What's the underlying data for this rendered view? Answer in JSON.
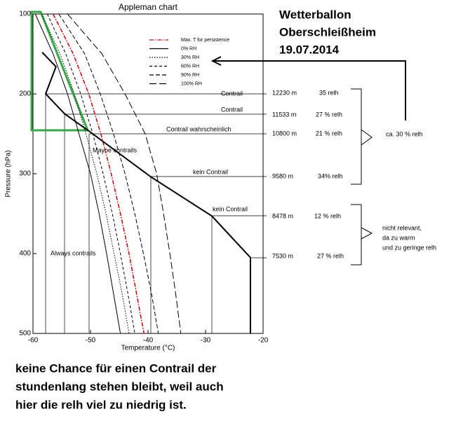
{
  "chart_data": {
    "type": "line",
    "title": "Appleman chart",
    "x_label": "Temperature (°C)",
    "y_label": "Pressure (hPa)",
    "xlim": [
      -60,
      -20
    ],
    "xticks": [
      -60,
      -50,
      -40,
      -30,
      -20
    ],
    "ylim": [
      100,
      500
    ],
    "yticks": [
      100,
      200,
      300,
      400,
      500
    ],
    "y_reversed": true,
    "series": [
      {
        "name": "Max. T for persistence",
        "color": "#cc0000",
        "dash": "dashdot",
        "pressure": [
          100,
          150,
          200,
          250,
          300,
          350,
          400,
          450,
          500
        ],
        "temperature": [
          -56.5,
          -53,
          -50.3,
          -48.2,
          -46.4,
          -44.8,
          -43.3,
          -42,
          -40.7
        ]
      },
      {
        "name": "0% RH",
        "color": "#000000",
        "dash": "solid",
        "pressure": [
          100,
          150,
          200,
          250,
          300,
          350,
          400,
          450,
          500
        ],
        "temperature": [
          -59.6,
          -56.5,
          -54,
          -52,
          -50,
          -48.5,
          -47.2,
          -46,
          -44.8
        ]
      },
      {
        "name": "30% RH",
        "color": "#000000",
        "dash": "dotted",
        "pressure": [
          100,
          150,
          200,
          250,
          300,
          350,
          400,
          450,
          500
        ],
        "temperature": [
          -58.5,
          -55.3,
          -52.8,
          -50.8,
          -48.9,
          -47.3,
          -45.9,
          -44.5,
          -43.3
        ]
      },
      {
        "name": "60% RH",
        "color": "#000000",
        "dash": "short",
        "pressure": [
          100,
          150,
          200,
          250,
          300,
          350,
          400,
          450,
          500
        ],
        "temperature": [
          -57.5,
          -54.3,
          -51.7,
          -49.6,
          -47.8,
          -46.2,
          -44.8,
          -43.5,
          -42.3
        ]
      },
      {
        "name": "90% RH",
        "color": "#000000",
        "dash": "medium",
        "pressure": [
          100,
          150,
          200,
          250,
          300,
          350,
          400,
          450,
          500
        ],
        "temperature": [
          -55.5,
          -51,
          -48.3,
          -46,
          -44,
          -42.3,
          -40.8,
          -39.4,
          -38.2
        ]
      },
      {
        "name": "100% RH",
        "color": "#000000",
        "dash": "long",
        "pressure": [
          100,
          150,
          200,
          250,
          300,
          350,
          400,
          450,
          500
        ],
        "temperature": [
          -54,
          -48,
          -44,
          -40.5,
          -38.5,
          -37.3,
          -36.2,
          -35.2,
          -34.3
        ]
      }
    ],
    "profile": {
      "color": "#000000",
      "pressure": [
        148,
        166,
        200,
        225,
        247,
        304,
        353,
        405,
        500
      ],
      "temperature": [
        -58.4,
        -56,
        -57.8,
        -54.5,
        -50.2,
        -39.5,
        -28.9,
        -22.2,
        -22.2
      ]
    },
    "region_labels": [
      "Always contrails",
      "Maybe contrails"
    ],
    "level_labels": [
      "Contrail",
      "Contrail",
      "Contrail wahrscheinlich",
      "kein Contrail",
      "kein Contrail"
    ],
    "heights": [
      "12230 m",
      "11533 m",
      "10800 m",
      "9580 m",
      "8478 m",
      "7530 m"
    ],
    "relh": [
      "35 relh",
      "27 % relh",
      "21 % relh",
      "34%  relh",
      "12 % relh",
      "27 % relh"
    ],
    "group_notes": [
      "ca. 30 % relh",
      "nicht relevant,",
      "da zu warm",
      "und zu geringe relh"
    ]
  },
  "heading": [
    "Wetterballon",
    "Oberschleißheim",
    "19.07.2014"
  ],
  "caption": [
    "keine Chance für einen Contrail der",
    "stundenlang stehen bleibt, weil auch",
    "hier die relh viel zu niedrig ist."
  ]
}
